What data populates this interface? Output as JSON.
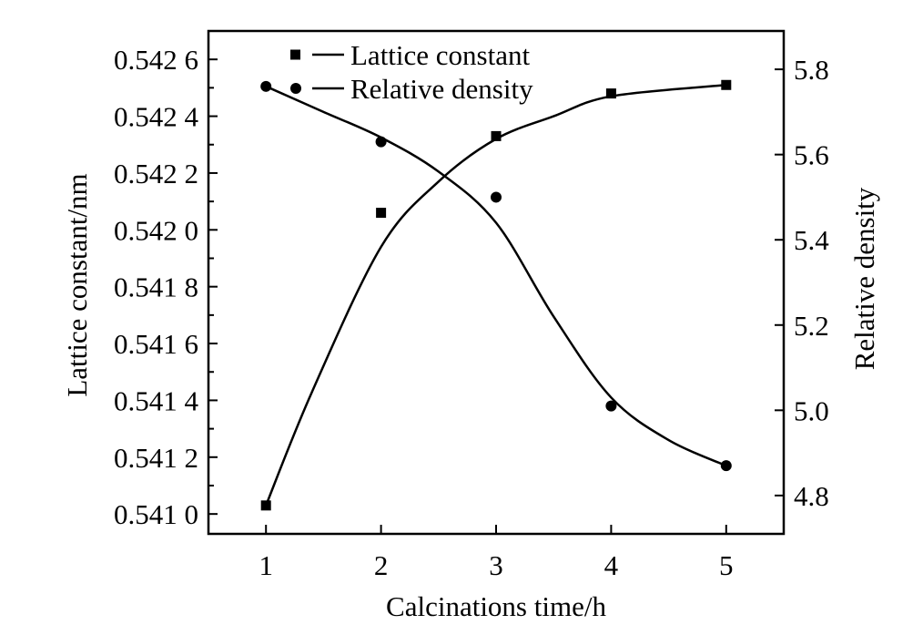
{
  "chart_data": {
    "type": "scatter",
    "title": "",
    "xlabel": "Calcinations time/h",
    "ylabel": "Lattice constant/nm",
    "y2label": "Relative density",
    "x": [
      1,
      2,
      3,
      4,
      5
    ],
    "xlim": [
      0.5,
      5.5
    ],
    "ylim": [
      0.54093,
      0.5427
    ],
    "y2lim": [
      4.71,
      5.89
    ],
    "x_ticks": [
      "1",
      "2",
      "3",
      "4",
      "5"
    ],
    "y_ticks": [
      {
        "value": 0.541,
        "label": "0.541 0"
      },
      {
        "value": 0.5412,
        "label": "0.541 2"
      },
      {
        "value": 0.5414,
        "label": "0.541 4"
      },
      {
        "value": 0.5416,
        "label": "0.541 6"
      },
      {
        "value": 0.5418,
        "label": "0.541 8"
      },
      {
        "value": 0.542,
        "label": "0.542 0"
      },
      {
        "value": 0.5422,
        "label": "0.542 2"
      },
      {
        "value": 0.5424,
        "label": "0.542 4"
      },
      {
        "value": 0.5426,
        "label": "0.542 6"
      }
    ],
    "y2_ticks": [
      {
        "value": 4.8,
        "label": "4.8"
      },
      {
        "value": 5.0,
        "label": "5.0"
      },
      {
        "value": 5.2,
        "label": "5.2"
      },
      {
        "value": 5.4,
        "label": "5.4"
      },
      {
        "value": 5.6,
        "label": "5.6"
      },
      {
        "value": 5.8,
        "label": "5.8"
      }
    ],
    "series": [
      {
        "name": "Lattice constant",
        "axis": "left",
        "marker": "square",
        "values": [
          0.54103,
          0.54206,
          0.54233,
          0.54248,
          0.54251
        ],
        "fit_curve": [
          [
            1,
            0.54103
          ],
          [
            1.4,
            0.54143
          ],
          [
            2,
            0.54194
          ],
          [
            2.5,
            0.54217
          ],
          [
            3,
            0.54232
          ],
          [
            3.5,
            0.5424
          ],
          [
            4,
            0.54247
          ],
          [
            5,
            0.54251
          ]
        ]
      },
      {
        "name": "Relative density",
        "axis": "right",
        "marker": "circle",
        "values": [
          5.76,
          5.63,
          5.5,
          5.01,
          4.87
        ],
        "fit_curve": [
          [
            1,
            5.76
          ],
          [
            1.5,
            5.7
          ],
          [
            2,
            5.64
          ],
          [
            2.5,
            5.56
          ],
          [
            3,
            5.44
          ],
          [
            3.5,
            5.22
          ],
          [
            4,
            5.03
          ],
          [
            4.5,
            4.93
          ],
          [
            5,
            4.87
          ]
        ]
      }
    ],
    "legend_position": "top-left",
    "grid": false
  }
}
